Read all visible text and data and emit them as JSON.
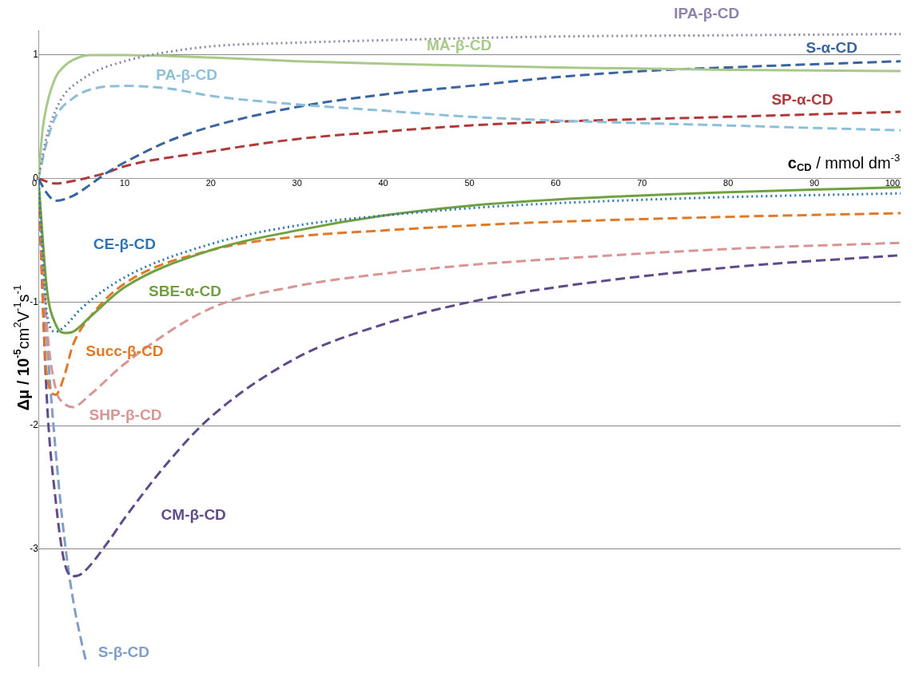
{
  "chart_data": {
    "type": "line",
    "xlabel": "c$_{CD}$ / mmol dm$^{-3}$",
    "ylabel": "Δμ / 10$^{-5}$cm$^{2}$V$^{-1}$s$^{-1}$",
    "xlim": [
      0,
      100
    ],
    "xticks": [
      0,
      10,
      20,
      30,
      40,
      50,
      60,
      70,
      80,
      90,
      100
    ],
    "ylim": [
      -3.95,
      1.2
    ],
    "yticks": [
      -3,
      -2,
      -1,
      0,
      1
    ],
    "grid": "y",
    "legend": false,
    "marker": "none",
    "series": [
      {
        "name": "IPA-β-CD",
        "color": "#8e84a8",
        "line_style": "dotted",
        "x": [
          0,
          1,
          2,
          3,
          5,
          7,
          10,
          13,
          20,
          30,
          40,
          60,
          80,
          100
        ],
        "values": [
          0,
          0.35,
          0.55,
          0.68,
          0.8,
          0.88,
          0.95,
          1.0,
          1.07,
          1.1,
          1.12,
          1.15,
          1.16,
          1.17
        ]
      },
      {
        "name": "MA-β-CD",
        "color": "#a9c98a",
        "line_style": "solid",
        "x": [
          0,
          0.5,
          1,
          2,
          3,
          4,
          6,
          10,
          20,
          30,
          40,
          60,
          80,
          100
        ],
        "values": [
          0,
          0.4,
          0.6,
          0.82,
          0.91,
          0.96,
          1.0,
          1.0,
          0.98,
          0.95,
          0.93,
          0.9,
          0.88,
          0.87
        ]
      },
      {
        "name": "PA-β-CD",
        "color": "#8cc0d8",
        "line_style": "dashed",
        "x": [
          0,
          1,
          2,
          4,
          6,
          10,
          15,
          20,
          30,
          40,
          50,
          60,
          80,
          100
        ],
        "values": [
          0,
          0.3,
          0.5,
          0.65,
          0.72,
          0.75,
          0.73,
          0.67,
          0.6,
          0.55,
          0.5,
          0.47,
          0.43,
          0.39
        ]
      },
      {
        "name": "S-α-CD",
        "color": "#3a64a0",
        "line_style": "dashed",
        "x": [
          0,
          1,
          2,
          4,
          6,
          8,
          10,
          15,
          20,
          30,
          40,
          50,
          60,
          70,
          80,
          100
        ],
        "values": [
          0,
          -0.12,
          -0.18,
          -0.14,
          -0.05,
          0.05,
          0.13,
          0.3,
          0.42,
          0.58,
          0.68,
          0.75,
          0.82,
          0.87,
          0.9,
          0.95
        ]
      },
      {
        "name": "SP-α-CD",
        "color": "#b03a3a",
        "line_style": "dashed",
        "x": [
          0,
          2,
          4,
          8,
          10,
          20,
          30,
          40,
          50,
          60,
          80,
          100
        ],
        "values": [
          0,
          -0.04,
          -0.02,
          0.05,
          0.1,
          0.22,
          0.32,
          0.38,
          0.43,
          0.46,
          0.5,
          0.54
        ]
      },
      {
        "name": "CE-β-CD",
        "color": "#2e75b6",
        "line_style": "dotted",
        "x": [
          0,
          0.5,
          1,
          2,
          3,
          5,
          10,
          20,
          30,
          40,
          50,
          60,
          80,
          100
        ],
        "values": [
          0,
          -0.6,
          -1.1,
          -1.24,
          -1.2,
          -1.05,
          -0.8,
          -0.53,
          -0.38,
          -0.3,
          -0.24,
          -0.2,
          -0.15,
          -0.12
        ]
      },
      {
        "name": "SBE-α-CD",
        "color": "#70a040",
        "line_style": "solid",
        "x": [
          0,
          1,
          2,
          3,
          4,
          6,
          10,
          20,
          30,
          40,
          50,
          60,
          80,
          100
        ],
        "values": [
          0,
          -0.9,
          -1.18,
          -1.25,
          -1.24,
          -1.12,
          -0.88,
          -0.58,
          -0.42,
          -0.3,
          -0.22,
          -0.17,
          -0.11,
          -0.07
        ]
      },
      {
        "name": "Succ-β-CD",
        "color": "#e07a28",
        "line_style": "dashed",
        "x": [
          0,
          1,
          2,
          3,
          4,
          6,
          10,
          20,
          30,
          40,
          50,
          60,
          80,
          100
        ],
        "values": [
          0,
          -1.6,
          -1.75,
          -1.6,
          -1.35,
          -1.12,
          -0.85,
          -0.58,
          -0.47,
          -0.42,
          -0.38,
          -0.35,
          -0.31,
          -0.28
        ]
      },
      {
        "name": "SHP-β-CD",
        "color": "#d99594",
        "line_style": "dashed",
        "x": [
          0,
          1,
          2,
          3,
          4,
          6,
          10,
          20,
          30,
          40,
          50,
          60,
          80,
          100
        ],
        "values": [
          0,
          -1.2,
          -1.7,
          -1.82,
          -1.85,
          -1.75,
          -1.5,
          -1.05,
          -0.87,
          -0.77,
          -0.7,
          -0.65,
          -0.57,
          -0.52
        ]
      },
      {
        "name": "CM-β-CD",
        "color": "#5f4b8b",
        "line_style": "dashed",
        "x": [
          0,
          1,
          2,
          3,
          4,
          5,
          8,
          10,
          15,
          20,
          30,
          40,
          50,
          60,
          80,
          100
        ],
        "values": [
          0,
          -1.8,
          -2.6,
          -3.1,
          -3.22,
          -3.2,
          -2.95,
          -2.75,
          -2.3,
          -1.93,
          -1.45,
          -1.18,
          -1.0,
          -0.88,
          -0.72,
          -0.62
        ]
      },
      {
        "name": "S-β-CD",
        "color": "#7f9fc8",
        "line_style": "dashed",
        "x": [
          0,
          1,
          2,
          3,
          4,
          5,
          5.5
        ],
        "values": [
          0,
          -1.3,
          -2.2,
          -2.9,
          -3.4,
          -3.75,
          -3.9
        ]
      }
    ]
  }
}
